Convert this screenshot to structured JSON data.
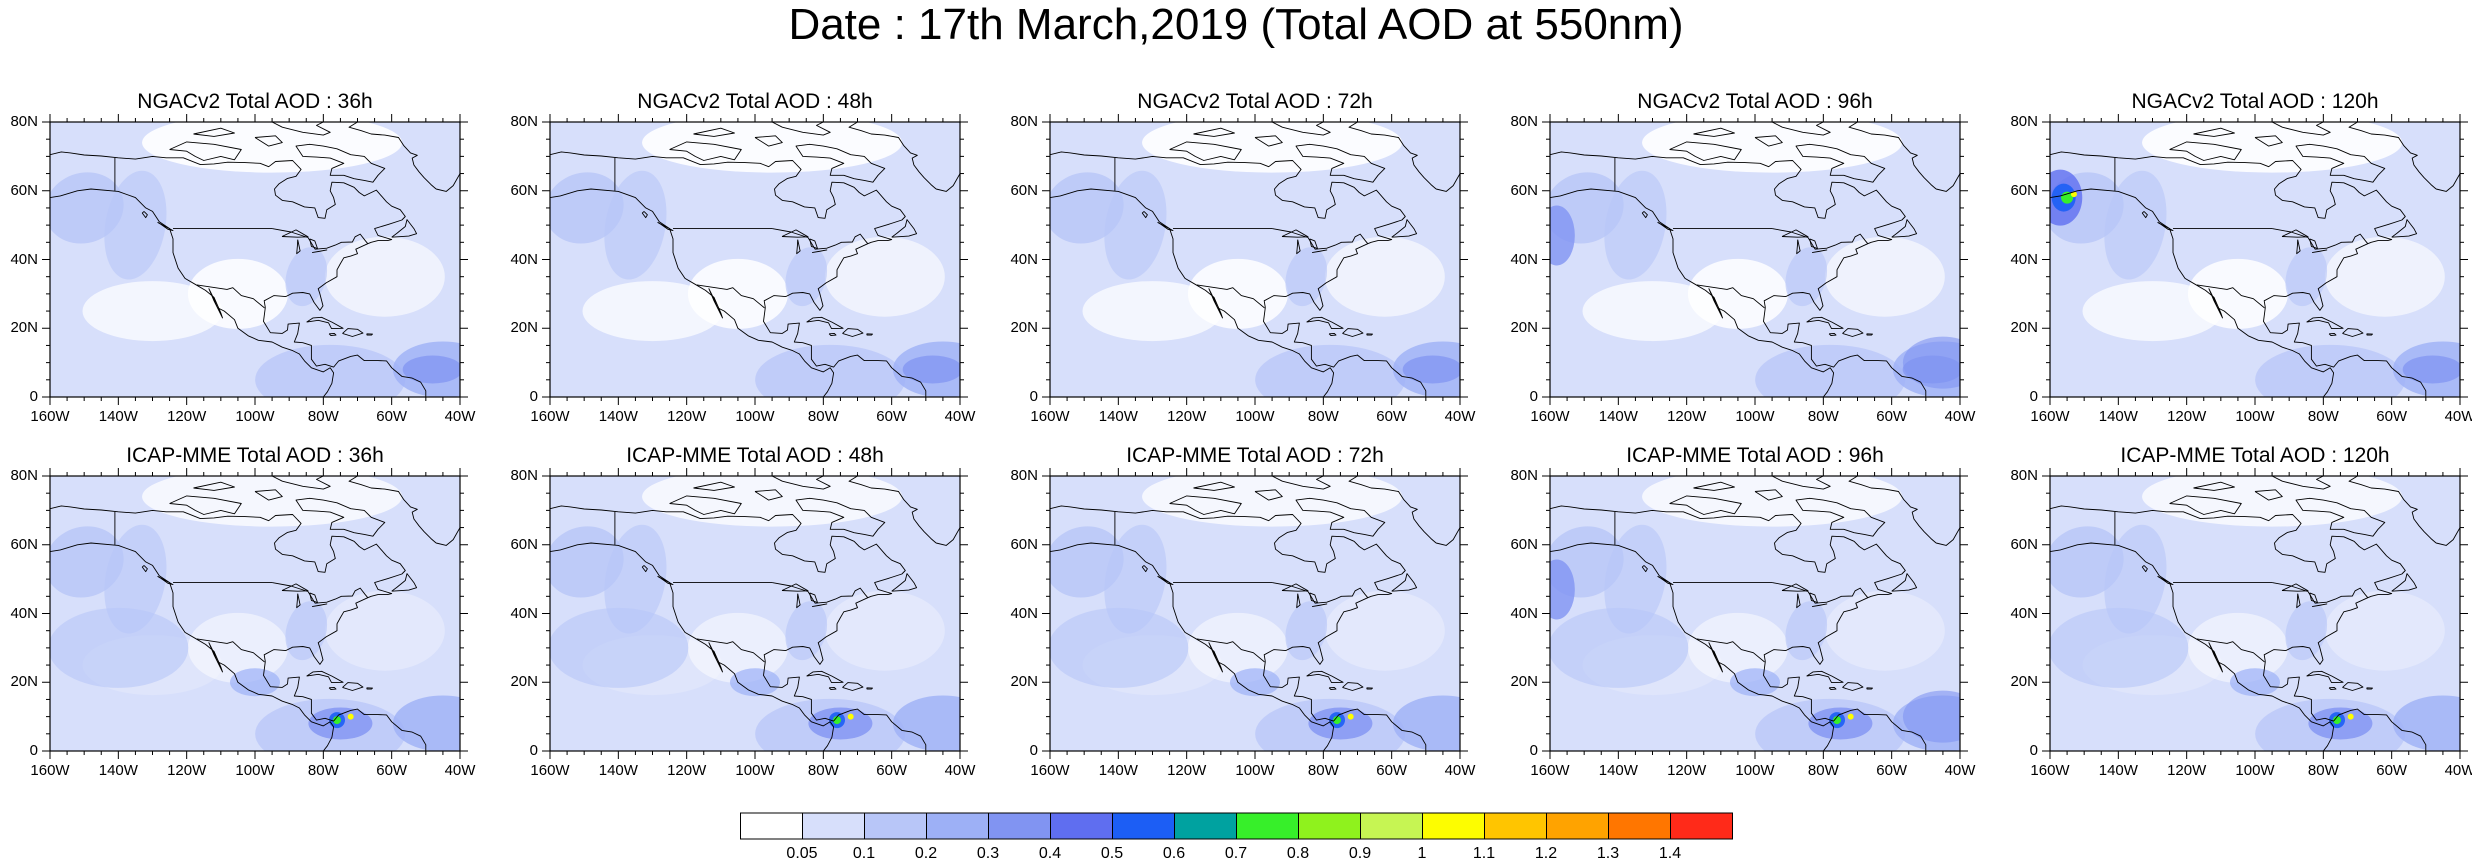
{
  "title": "Date : 17th March,2019 (Total AOD at 550nm)",
  "panels": [
    {
      "title": "NGACv2 Total AOD : 36h"
    },
    {
      "title": "NGACv2 Total AOD : 48h"
    },
    {
      "title": "NGACv2 Total AOD : 72h"
    },
    {
      "title": "NGACv2 Total AOD : 96h"
    },
    {
      "title": "NGACv2 Total AOD : 120h"
    },
    {
      "title": "ICAP-MME Total AOD : 36h"
    },
    {
      "title": "ICAP-MME Total AOD : 48h"
    },
    {
      "title": "ICAP-MME Total AOD : 72h"
    },
    {
      "title": "ICAP-MME Total AOD : 96h"
    },
    {
      "title": "ICAP-MME Total AOD : 120h"
    }
  ],
  "lat_labels": [
    "80N",
    "60N",
    "40N",
    "20N",
    "0"
  ],
  "lon_labels": [
    "160W",
    "140W",
    "120W",
    "100W",
    "80W",
    "60W",
    "40W"
  ],
  "colorbar": {
    "colors": [
      "#ffffff",
      "#d7dffb",
      "#b8c6f8",
      "#9db0f6",
      "#8194f2",
      "#5f6ef0",
      "#1c5ef5",
      "#00a2a0",
      "#37ef2a",
      "#8ff21d",
      "#c6f553",
      "#fdfd00",
      "#ffc500",
      "#ffa300",
      "#ff7600",
      "#ff2a19"
    ],
    "labels": [
      "0.05",
      "0.1",
      "0.2",
      "0.3",
      "0.4",
      "0.5",
      "0.6",
      "0.7",
      "0.8",
      "0.9",
      "1",
      "1.1",
      "1.2",
      "1.3",
      "1.4"
    ]
  }
}
